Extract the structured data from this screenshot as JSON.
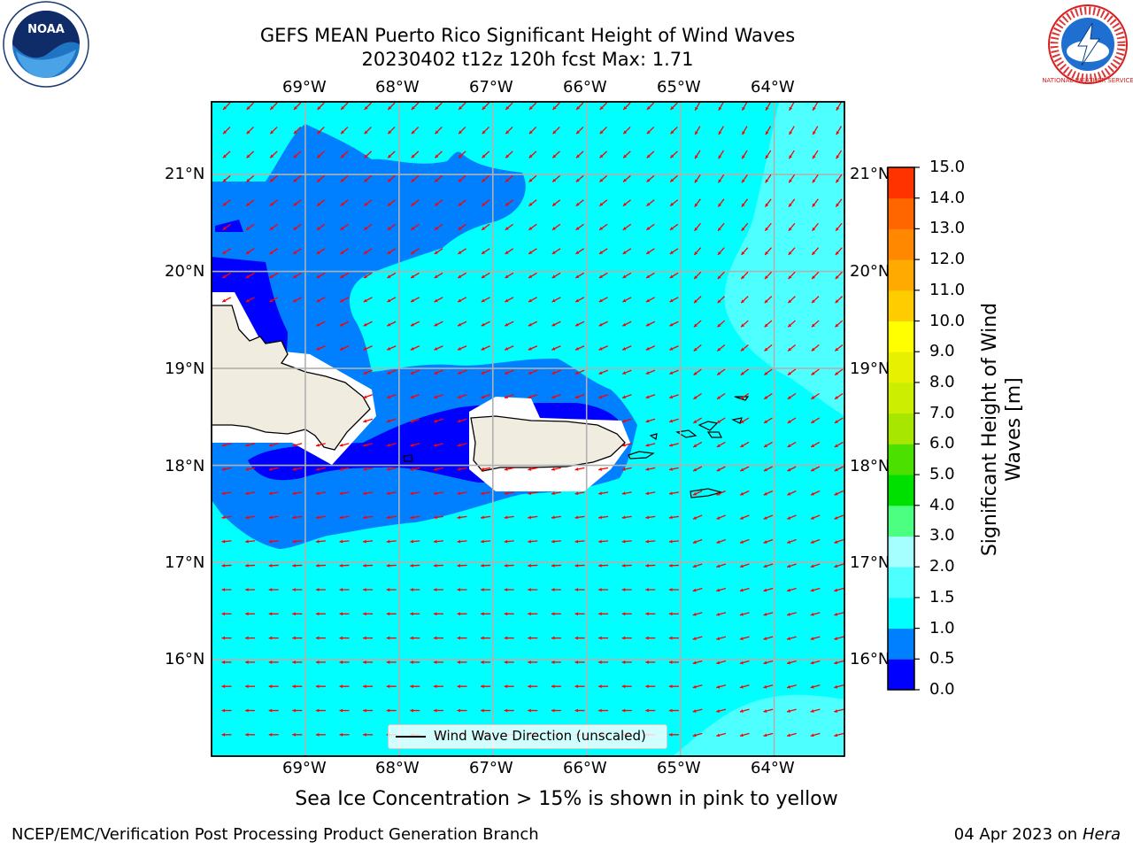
{
  "title": {
    "line1": "GEFS MEAN Puerto Rico Significant Height of Wind Waves",
    "line2": "20230402 t12z 120h fcst   Max: 1.71"
  },
  "map": {
    "lon_labels": [
      "69°W",
      "68°W",
      "67°W",
      "66°W",
      "65°W",
      "64°W"
    ],
    "lat_labels": [
      "21°N",
      "20°N",
      "19°N",
      "18°N",
      "17°N",
      "16°N"
    ],
    "extent": {
      "lon_min": -70.0,
      "lon_max": -63.25,
      "lat_min": 15.0,
      "lat_max": 21.75
    },
    "colors": {
      "ocean_dominant": "#00ffff",
      "land": "#f0ede0",
      "arrows": "#ff0000",
      "grid": "#b0b0b0"
    },
    "legend_label": "Wind Wave Direction (unscaled)"
  },
  "colorbar": {
    "title": "Significant Height of Wind Waves [m]",
    "ticks": [
      "0.0",
      "0.5",
      "1.0",
      "1.5",
      "2.0",
      "3.0",
      "4.0",
      "5.0",
      "6.0",
      "7.0",
      "8.0",
      "9.0",
      "10.0",
      "11.0",
      "12.0",
      "13.0",
      "14.0",
      "15.0"
    ],
    "colors": [
      "#0000ff",
      "#0080ff",
      "#00ffff",
      "#4dffff",
      "#a6ffff",
      "#4cff80",
      "#00e000",
      "#4ce000",
      "#a6e600",
      "#ccee00",
      "#e6f000",
      "#ffff00",
      "#ffcc00",
      "#ffaa00",
      "#ff8800",
      "#ff6600",
      "#ff3300"
    ]
  },
  "note": "Sea Ice Concentration > 15% is shown in pink to yellow",
  "footer": {
    "left": "NCEP/EMC/Verification Post Processing Product Generation Branch",
    "right_date": "04 Apr 2023 on",
    "right_host": "Hera"
  },
  "logos": {
    "noaa": "NOAA",
    "nws": "NATIONAL WEATHER SERVICE"
  }
}
